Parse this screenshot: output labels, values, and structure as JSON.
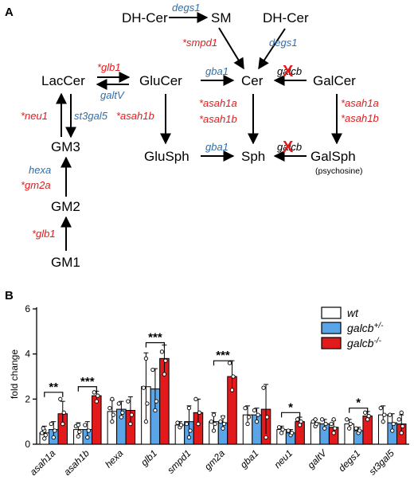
{
  "panel_a": {
    "label": "A",
    "nodes": {
      "dh_cer_left": "DH-Cer",
      "sm": "SM",
      "dh_cer_right": "DH-Cer",
      "laccer": "LacCer",
      "glucer": "GluCer",
      "cer": "Cer",
      "galcer": "GalCer",
      "gm3": "GM3",
      "gluSph": "GluSph",
      "sph": "Sph",
      "galsph": "GalSph",
      "psychosine": "(psychosine)",
      "gm2": "GM2",
      "gm1": "GM1"
    },
    "enzymes": {
      "degs1_top": "degs1",
      "smpd1": "*smpd1",
      "degs1_right": "degs1",
      "glb1_top": "*glb1",
      "galtV": "galtV",
      "gba1_top": "gba1",
      "galcb_top": "galcb",
      "neu1": "*neu1",
      "st3gal5": "st3gal5",
      "asah1b_left": "*asah1b",
      "asah1a_mid": "*asah1a",
      "asah1b_mid": "*asah1b",
      "asah1a_right": "*asah1a",
      "asah1b_right": "*asah1b",
      "hexa": "hexa",
      "gm2a": "*gm2a",
      "gba1_bottom": "gba1",
      "galcb_bottom": "galcb",
      "glb1_bottom": "*glb1"
    },
    "cross_mark": "X",
    "colors": {
      "upregulated": "#e31a1c",
      "unchanged": "#2e6fb0",
      "neutral": "#000000"
    }
  },
  "chart_data": {
    "type": "bar",
    "panel_label": "B",
    "ylabel": "fold change",
    "ylim": [
      0,
      6
    ],
    "yticks": [
      0,
      2,
      4,
      6
    ],
    "categories": [
      "asah1a",
      "asah1b",
      "hexa",
      "glb1",
      "smpd1",
      "gm2a",
      "gba1",
      "neu1",
      "galtV",
      "degs1",
      "st3gal5"
    ],
    "series": [
      {
        "name": "wt",
        "color": "#ffffff",
        "values": [
          0.5,
          0.65,
          1.45,
          2.55,
          0.85,
          1.0,
          1.3,
          0.65,
          0.95,
          0.9,
          1.3
        ],
        "errors": [
          0.3,
          0.3,
          0.5,
          1.5,
          0.15,
          0.4,
          0.4,
          0.15,
          0.15,
          0.2,
          0.4
        ]
      },
      {
        "name": "galcb+/-",
        "color": "#5aa5e8",
        "values": [
          0.65,
          0.65,
          1.55,
          2.45,
          1.0,
          0.95,
          1.3,
          0.5,
          0.9,
          0.6,
          0.95
        ],
        "errors": [
          0.35,
          0.35,
          0.35,
          0.9,
          0.7,
          0.3,
          0.3,
          0.15,
          0.2,
          0.15,
          0.4
        ]
      },
      {
        "name": "galcb-/-",
        "color": "#e31a1c",
        "values": [
          1.35,
          2.15,
          1.5,
          3.8,
          1.4,
          3.0,
          1.55,
          1.0,
          0.75,
          1.25,
          0.9
        ],
        "errors": [
          0.55,
          0.2,
          0.6,
          0.6,
          0.6,
          0.7,
          1.1,
          0.2,
          0.3,
          0.2,
          0.4
        ]
      }
    ],
    "points": [
      [
        [
          0.25,
          0.4,
          0.5,
          0.6,
          0.7
        ],
        [
          0.3,
          0.6,
          0.9
        ],
        [
          0.9,
          1.4,
          2.0
        ]
      ],
      [
        [
          0.35,
          0.55,
          0.8,
          0.85
        ],
        [
          0.3,
          0.6,
          0.85
        ],
        [
          1.9,
          2.15,
          2.3
        ]
      ],
      [
        [
          1.0,
          1.3,
          1.6,
          2.0
        ],
        [
          1.2,
          1.4,
          1.8
        ],
        [
          0.9,
          1.3,
          1.9
        ]
      ],
      [
        [
          1.0,
          1.8,
          2.5,
          3.8
        ],
        [
          1.5,
          1.9,
          3.3
        ],
        [
          3.1,
          3.7,
          4.1
        ]
      ],
      [
        [
          0.75,
          0.85,
          0.95
        ],
        [
          0.3,
          0.6,
          0.9,
          1.6
        ],
        [
          0.9,
          1.4,
          2.0
        ]
      ],
      [
        [
          0.6,
          0.9,
          1.0,
          1.3
        ],
        [
          0.7,
          0.9,
          1.0,
          1.2
        ],
        [
          2.4,
          3.0,
          3.6
        ]
      ],
      [
        [
          0.9,
          1.2,
          1.6
        ],
        [
          1.0,
          1.3,
          1.5
        ],
        [
          0.3,
          1.2,
          2.5
        ]
      ],
      [
        [
          0.5,
          0.65,
          0.75
        ],
        [
          0.4,
          0.5,
          0.6
        ],
        [
          0.85,
          1.0,
          1.1
        ]
      ],
      [
        [
          0.8,
          0.9,
          1.0,
          1.1
        ],
        [
          0.7,
          0.9,
          1.1
        ],
        [
          0.5,
          0.7,
          0.9,
          1.1
        ]
      ],
      [
        [
          0.7,
          0.9,
          1.1
        ],
        [
          0.5,
          0.6,
          0.7
        ],
        [
          1.1,
          1.25,
          1.4
        ]
      ],
      [
        [
          1.0,
          1.3,
          1.6
        ],
        [
          0.6,
          0.9,
          1.3
        ],
        [
          0.5,
          0.8,
          1.1,
          1.4
        ]
      ]
    ],
    "significance": [
      {
        "category": "asah1a",
        "label": "**",
        "y": 2.3
      },
      {
        "category": "asah1b",
        "label": "***",
        "y": 2.55
      },
      {
        "category": "glb1",
        "label": "***",
        "y": 4.5
      },
      {
        "category": "gm2a",
        "label": "***",
        "y": 3.7
      },
      {
        "category": "neu1",
        "label": "*",
        "y": 1.4
      },
      {
        "category": "degs1",
        "label": "*",
        "y": 1.6
      }
    ],
    "legend": {
      "position": "top-right",
      "entries": [
        {
          "base": "wt",
          "sup": ""
        },
        {
          "base": "galcb",
          "sup": "+/-"
        },
        {
          "base": "galcb",
          "sup": "-/-"
        }
      ]
    }
  }
}
